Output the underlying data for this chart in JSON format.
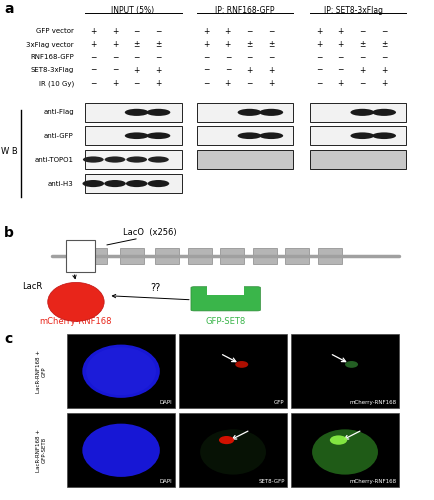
{
  "fig_width": 4.34,
  "fig_height": 5.0,
  "bg_color": "#ffffff",
  "panel_a": {
    "groups": [
      "INPUT (5%)",
      "IP: RNF168-GFP",
      "IP: SET8-3xFlag"
    ],
    "rows": [
      "GFP vector",
      "3xFlag vector",
      "RNF168-GFP",
      "SET8-3xFlag",
      "IR (10 Gy)"
    ],
    "wb_labels": [
      "anti-Flag",
      "anti-GFP",
      "anti-TOPO1",
      "anti-H3"
    ]
  },
  "panel_b": {
    "mcherry_color": "#e8251a",
    "gfp_color": "#3ab54a",
    "line_color": "#a0a0a0",
    "box_color": "#b0b0b0"
  },
  "panel_c": {
    "col_labels_row1": [
      "DAPI",
      "GFP",
      "mCherry-RNF168"
    ],
    "col_labels_row2": [
      "DAPI",
      "SET8-GFP",
      "mCherry-RNF168"
    ]
  }
}
